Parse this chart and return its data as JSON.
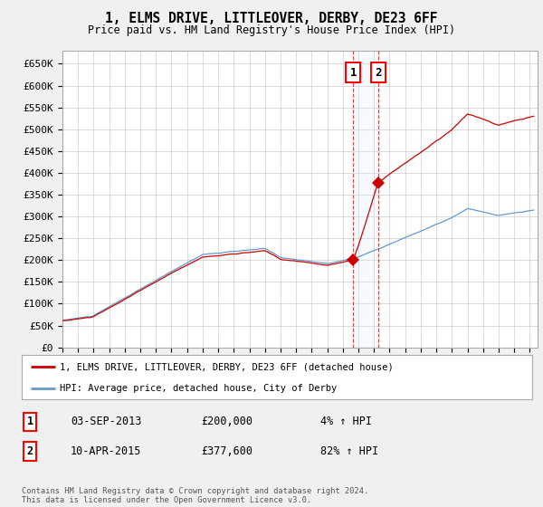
{
  "title1": "1, ELMS DRIVE, LITTLEOVER, DERBY, DE23 6FF",
  "title2": "Price paid vs. HM Land Registry's House Price Index (HPI)",
  "ylabel_ticks": [
    "£0",
    "£50K",
    "£100K",
    "£150K",
    "£200K",
    "£250K",
    "£300K",
    "£350K",
    "£400K",
    "£450K",
    "£500K",
    "£550K",
    "£600K",
    "£650K"
  ],
  "ytick_values": [
    0,
    50000,
    100000,
    150000,
    200000,
    250000,
    300000,
    350000,
    400000,
    450000,
    500000,
    550000,
    600000,
    650000
  ],
  "xlim_start": 1995.0,
  "xlim_end": 2025.5,
  "ylim_min": 0,
  "ylim_max": 680000,
  "sale1_date": 2013.67,
  "sale1_price": 200000,
  "sale2_date": 2015.27,
  "sale2_price": 377600,
  "legend_line1": "1, ELMS DRIVE, LITTLEOVER, DERBY, DE23 6FF (detached house)",
  "legend_line2": "HPI: Average price, detached house, City of Derby",
  "table_row1": [
    "1",
    "03-SEP-2013",
    "£200,000",
    "4% ↑ HPI"
  ],
  "table_row2": [
    "2",
    "10-APR-2015",
    "£377,600",
    "82% ↑ HPI"
  ],
  "footer": "Contains HM Land Registry data © Crown copyright and database right 2024.\nThis data is licensed under the Open Government Licence v3.0.",
  "line_color_property": "#cc0000",
  "line_color_hpi": "#6699cc",
  "vline_color": "#cc0000",
  "span_color": "#ddeeff",
  "background_color": "#f0f0f0",
  "plot_bg_color": "#ffffff",
  "grid_color": "#cccccc",
  "marker_color": "#cc0000"
}
